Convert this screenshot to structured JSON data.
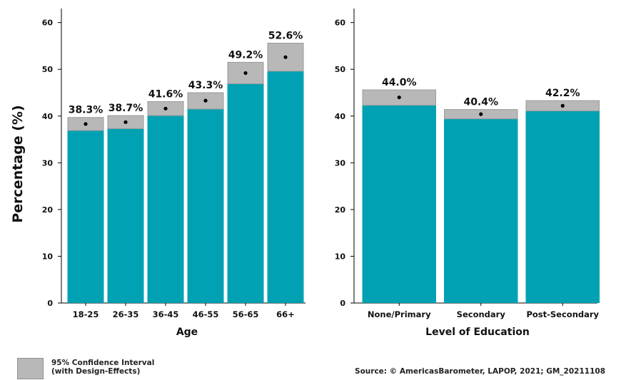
{
  "chart_data": [
    {
      "type": "bar",
      "title": "",
      "xlabel": "Age",
      "ylabel": "Percentage (%)",
      "ylim": [
        0,
        63
      ],
      "yticks": [
        0,
        10,
        20,
        30,
        40,
        50,
        60
      ],
      "grid": false,
      "categories": [
        "18-25",
        "26-35",
        "36-45",
        "46-55",
        "56-65",
        "66+"
      ],
      "values": [
        38.3,
        38.7,
        41.6,
        43.3,
        49.2,
        52.6
      ],
      "value_labels": [
        "38.3%",
        "38.7%",
        "41.6%",
        "43.3%",
        "49.2%",
        "52.6%"
      ],
      "ci_lower": [
        36.9,
        37.3,
        40.1,
        41.5,
        46.9,
        49.6
      ],
      "ci_upper": [
        39.7,
        40.1,
        43.1,
        45.0,
        51.5,
        55.6
      ]
    },
    {
      "type": "bar",
      "title": "",
      "xlabel": "Level of Education",
      "ylabel": "",
      "ylim": [
        0,
        63
      ],
      "yticks": [
        0,
        10,
        20,
        30,
        40,
        50,
        60
      ],
      "grid": false,
      "categories": [
        "None/Primary",
        "Secondary",
        "Post-Secondary"
      ],
      "values": [
        44.0,
        40.4,
        42.2
      ],
      "value_labels": [
        "44.0%",
        "40.4%",
        "42.2%"
      ],
      "ci_lower": [
        42.3,
        39.4,
        41.1
      ],
      "ci_upper": [
        45.6,
        41.4,
        43.3
      ]
    }
  ],
  "colors": {
    "bar": "#00A1B3",
    "ci": "#b8b8b8",
    "ci_border": "#9a9a9a",
    "point": "#000000"
  },
  "legend": {
    "line1": "95% Confidence Interval",
    "line2": "(with Design-Effects)"
  },
  "source": "Source: © AmericasBarometer, LAPOP, 2021; GM_20211108"
}
